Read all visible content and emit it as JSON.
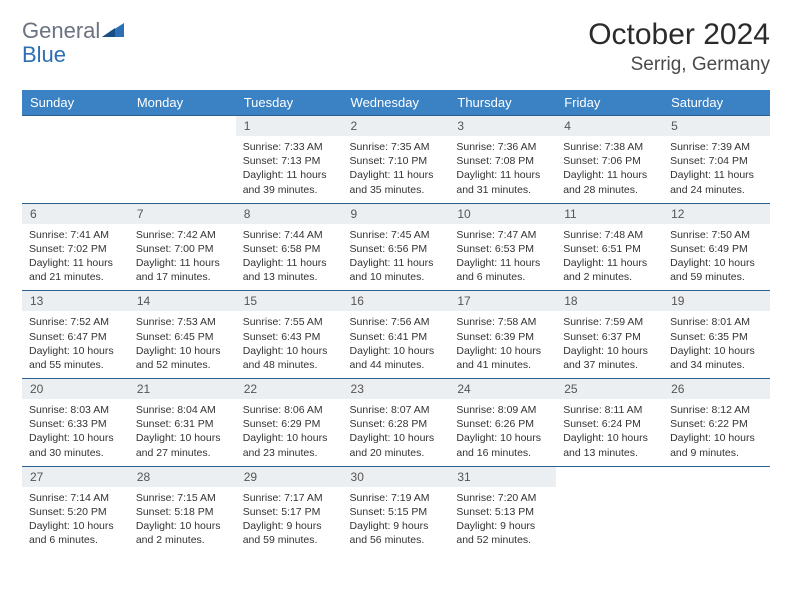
{
  "header": {
    "logo_text_1": "General",
    "logo_text_2": "Blue",
    "logo_color_1": "#6b7280",
    "logo_color_2": "#2d6fb3",
    "month_title": "October 2024",
    "location": "Serrig, Germany"
  },
  "colors": {
    "header_row_bg": "#3b82c4",
    "header_row_text": "#ffffff",
    "daynum_bg": "#eceff1",
    "week_border": "#2d5f8f",
    "text": "#333333"
  },
  "weekdays": [
    "Sunday",
    "Monday",
    "Tuesday",
    "Wednesday",
    "Thursday",
    "Friday",
    "Saturday"
  ],
  "weeks": [
    [
      {
        "n": "",
        "sr": "",
        "ss": "",
        "dl": ""
      },
      {
        "n": "",
        "sr": "",
        "ss": "",
        "dl": ""
      },
      {
        "n": "1",
        "sr": "Sunrise: 7:33 AM",
        "ss": "Sunset: 7:13 PM",
        "dl": "Daylight: 11 hours and 39 minutes."
      },
      {
        "n": "2",
        "sr": "Sunrise: 7:35 AM",
        "ss": "Sunset: 7:10 PM",
        "dl": "Daylight: 11 hours and 35 minutes."
      },
      {
        "n": "3",
        "sr": "Sunrise: 7:36 AM",
        "ss": "Sunset: 7:08 PM",
        "dl": "Daylight: 11 hours and 31 minutes."
      },
      {
        "n": "4",
        "sr": "Sunrise: 7:38 AM",
        "ss": "Sunset: 7:06 PM",
        "dl": "Daylight: 11 hours and 28 minutes."
      },
      {
        "n": "5",
        "sr": "Sunrise: 7:39 AM",
        "ss": "Sunset: 7:04 PM",
        "dl": "Daylight: 11 hours and 24 minutes."
      }
    ],
    [
      {
        "n": "6",
        "sr": "Sunrise: 7:41 AM",
        "ss": "Sunset: 7:02 PM",
        "dl": "Daylight: 11 hours and 21 minutes."
      },
      {
        "n": "7",
        "sr": "Sunrise: 7:42 AM",
        "ss": "Sunset: 7:00 PM",
        "dl": "Daylight: 11 hours and 17 minutes."
      },
      {
        "n": "8",
        "sr": "Sunrise: 7:44 AM",
        "ss": "Sunset: 6:58 PM",
        "dl": "Daylight: 11 hours and 13 minutes."
      },
      {
        "n": "9",
        "sr": "Sunrise: 7:45 AM",
        "ss": "Sunset: 6:56 PM",
        "dl": "Daylight: 11 hours and 10 minutes."
      },
      {
        "n": "10",
        "sr": "Sunrise: 7:47 AM",
        "ss": "Sunset: 6:53 PM",
        "dl": "Daylight: 11 hours and 6 minutes."
      },
      {
        "n": "11",
        "sr": "Sunrise: 7:48 AM",
        "ss": "Sunset: 6:51 PM",
        "dl": "Daylight: 11 hours and 2 minutes."
      },
      {
        "n": "12",
        "sr": "Sunrise: 7:50 AM",
        "ss": "Sunset: 6:49 PM",
        "dl": "Daylight: 10 hours and 59 minutes."
      }
    ],
    [
      {
        "n": "13",
        "sr": "Sunrise: 7:52 AM",
        "ss": "Sunset: 6:47 PM",
        "dl": "Daylight: 10 hours and 55 minutes."
      },
      {
        "n": "14",
        "sr": "Sunrise: 7:53 AM",
        "ss": "Sunset: 6:45 PM",
        "dl": "Daylight: 10 hours and 52 minutes."
      },
      {
        "n": "15",
        "sr": "Sunrise: 7:55 AM",
        "ss": "Sunset: 6:43 PM",
        "dl": "Daylight: 10 hours and 48 minutes."
      },
      {
        "n": "16",
        "sr": "Sunrise: 7:56 AM",
        "ss": "Sunset: 6:41 PM",
        "dl": "Daylight: 10 hours and 44 minutes."
      },
      {
        "n": "17",
        "sr": "Sunrise: 7:58 AM",
        "ss": "Sunset: 6:39 PM",
        "dl": "Daylight: 10 hours and 41 minutes."
      },
      {
        "n": "18",
        "sr": "Sunrise: 7:59 AM",
        "ss": "Sunset: 6:37 PM",
        "dl": "Daylight: 10 hours and 37 minutes."
      },
      {
        "n": "19",
        "sr": "Sunrise: 8:01 AM",
        "ss": "Sunset: 6:35 PM",
        "dl": "Daylight: 10 hours and 34 minutes."
      }
    ],
    [
      {
        "n": "20",
        "sr": "Sunrise: 8:03 AM",
        "ss": "Sunset: 6:33 PM",
        "dl": "Daylight: 10 hours and 30 minutes."
      },
      {
        "n": "21",
        "sr": "Sunrise: 8:04 AM",
        "ss": "Sunset: 6:31 PM",
        "dl": "Daylight: 10 hours and 27 minutes."
      },
      {
        "n": "22",
        "sr": "Sunrise: 8:06 AM",
        "ss": "Sunset: 6:29 PM",
        "dl": "Daylight: 10 hours and 23 minutes."
      },
      {
        "n": "23",
        "sr": "Sunrise: 8:07 AM",
        "ss": "Sunset: 6:28 PM",
        "dl": "Daylight: 10 hours and 20 minutes."
      },
      {
        "n": "24",
        "sr": "Sunrise: 8:09 AM",
        "ss": "Sunset: 6:26 PM",
        "dl": "Daylight: 10 hours and 16 minutes."
      },
      {
        "n": "25",
        "sr": "Sunrise: 8:11 AM",
        "ss": "Sunset: 6:24 PM",
        "dl": "Daylight: 10 hours and 13 minutes."
      },
      {
        "n": "26",
        "sr": "Sunrise: 8:12 AM",
        "ss": "Sunset: 6:22 PM",
        "dl": "Daylight: 10 hours and 9 minutes."
      }
    ],
    [
      {
        "n": "27",
        "sr": "Sunrise: 7:14 AM",
        "ss": "Sunset: 5:20 PM",
        "dl": "Daylight: 10 hours and 6 minutes."
      },
      {
        "n": "28",
        "sr": "Sunrise: 7:15 AM",
        "ss": "Sunset: 5:18 PM",
        "dl": "Daylight: 10 hours and 2 minutes."
      },
      {
        "n": "29",
        "sr": "Sunrise: 7:17 AM",
        "ss": "Sunset: 5:17 PM",
        "dl": "Daylight: 9 hours and 59 minutes."
      },
      {
        "n": "30",
        "sr": "Sunrise: 7:19 AM",
        "ss": "Sunset: 5:15 PM",
        "dl": "Daylight: 9 hours and 56 minutes."
      },
      {
        "n": "31",
        "sr": "Sunrise: 7:20 AM",
        "ss": "Sunset: 5:13 PM",
        "dl": "Daylight: 9 hours and 52 minutes."
      },
      {
        "n": "",
        "sr": "",
        "ss": "",
        "dl": ""
      },
      {
        "n": "",
        "sr": "",
        "ss": "",
        "dl": ""
      }
    ]
  ]
}
